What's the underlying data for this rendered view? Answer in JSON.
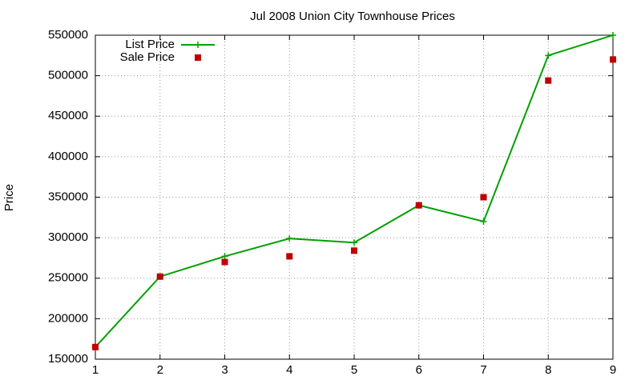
{
  "chart_data": {
    "type": "line",
    "title": "Jul 2008 Union City Townhouse Prices",
    "y_label": "Price",
    "x": [
      1,
      2,
      3,
      4,
      5,
      6,
      7,
      8,
      9
    ],
    "xlim": [
      1,
      9
    ],
    "xticks": [
      1,
      2,
      3,
      4,
      5,
      6,
      7,
      8,
      9
    ],
    "ylim": [
      150000,
      550000
    ],
    "yticks": [
      150000,
      200000,
      250000,
      300000,
      350000,
      400000,
      450000,
      500000,
      550000
    ],
    "grid": true,
    "legend": "top-left",
    "series": [
      {
        "name": "List Price",
        "color": "#00a000",
        "line": true,
        "marker": "plus",
        "values": [
          165000,
          252000,
          277000,
          299000,
          294000,
          340000,
          320000,
          525000,
          550000
        ]
      },
      {
        "name": "Sale Price",
        "color": "#c00000",
        "line": false,
        "marker": "square",
        "values": [
          165000,
          252000,
          270000,
          277000,
          284000,
          340000,
          350000,
          494000,
          520000
        ]
      }
    ]
  }
}
